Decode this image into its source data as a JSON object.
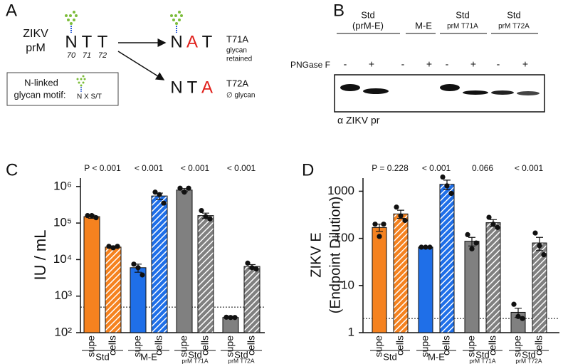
{
  "panel_a": {
    "letter": "A",
    "protein": [
      "ZIKV",
      "prM"
    ],
    "wild_type": {
      "residues": [
        "N",
        "T",
        "T"
      ],
      "positions": [
        "70",
        "71",
        "72"
      ]
    },
    "mutant_t71a": {
      "residues": [
        "N",
        "A",
        "T"
      ],
      "name": "T71A",
      "note": [
        "glycan",
        "retained"
      ]
    },
    "mutant_t72a": {
      "residues": [
        "N",
        "T",
        "A"
      ],
      "name": "T72A",
      "note": "∅ glycan"
    },
    "motif_box": {
      "title": [
        "N-linked",
        "glycan motif:"
      ],
      "motif": "N X S/T"
    }
  },
  "panel_b": {
    "letter": "B",
    "lanes": [
      {
        "name": [
          "Std",
          "(prM-E)"
        ]
      },
      {
        "name": [
          "M-E"
        ]
      },
      {
        "name": [
          "Std"
        ],
        "sub": "prM T71A"
      },
      {
        "name": [
          "Std"
        ],
        "sub": "prM T72A"
      }
    ],
    "treatment": "PNGase F",
    "signs": [
      "-",
      "+",
      "-",
      "+",
      "-",
      "+",
      "-",
      "+"
    ],
    "antibody": "α ZIKV pr"
  },
  "chart_data": [
    {
      "type": "bar",
      "letter": "C",
      "ylabel": "IU / mL",
      "log_scale": true,
      "ylim": [
        100,
        1700000
      ],
      "yticks": [
        {
          "value": 100,
          "label": "10²"
        },
        {
          "value": 1000,
          "label": "10³"
        },
        {
          "value": 10000,
          "label": "10⁴"
        },
        {
          "value": 100000,
          "label": "10⁵"
        },
        {
          "value": 1000000,
          "label": "10⁶"
        }
      ],
      "threshold": 500,
      "categories": [
        "supe",
        "cells",
        "supe",
        "cells",
        "supe",
        "cells",
        "supe",
        "cells"
      ],
      "groups": [
        {
          "name": "Std"
        },
        {
          "name": "M-E"
        },
        {
          "name": "Std",
          "sub": "prM T71A"
        },
        {
          "name": "Std",
          "sub": "prM T72A"
        }
      ],
      "pvalues": [
        "P < 0.001",
        "< 0.001",
        "< 0.001",
        "< 0.001"
      ],
      "values": [
        150000,
        22000,
        6000,
        550000,
        800000,
        160000,
        260,
        6500
      ],
      "errors": [
        15000,
        1500,
        1500,
        110000,
        80000,
        27000,
        3,
        800
      ],
      "points": [
        [
          160000,
          160000,
          140000
        ],
        [
          23000,
          21000,
          23000
        ],
        [
          7500,
          6000,
          3800
        ],
        [
          700000,
          600000,
          350000
        ],
        [
          900000,
          700000,
          900000
        ],
        [
          220000,
          150000,
          130000
        ],
        [
          265,
          260,
          260
        ],
        [
          8000,
          6000,
          5500
        ]
      ],
      "colors": [
        "#f5821f",
        "#f5821f",
        "#1f6fe8",
        "#1f6fe8",
        "#808080",
        "#808080",
        "#808080",
        "#808080"
      ],
      "hatched": [
        false,
        true,
        false,
        true,
        false,
        true,
        false,
        true
      ]
    },
    {
      "type": "bar",
      "letter": "D",
      "ylabel": [
        "ZIKV E",
        "(Endpoint Dilution)"
      ],
      "log_scale": true,
      "ylim": [
        1,
        1900
      ],
      "yticks": [
        1,
        10,
        100,
        1000
      ],
      "threshold": 2,
      "categories": [
        "supe",
        "cells",
        "supe",
        "cells",
        "supe",
        "cells",
        "supe",
        "cells"
      ],
      "groups": [
        {
          "name": "Std"
        },
        {
          "name": "M-E"
        },
        {
          "name": "Std",
          "sub": "prM T71A"
        },
        {
          "name": "Std",
          "sub": "prM T72A"
        }
      ],
      "pvalues": [
        "P = 0.228",
        "< 0.001",
        "0.066",
        "< 0.001"
      ],
      "values": [
        170,
        330,
        65,
        1400,
        87,
        215,
        2.7,
        80
      ],
      "errors": [
        30,
        65,
        0.5,
        320,
        18,
        35,
        0.6,
        25
      ],
      "points": [
        [
          200,
          110,
          200
        ],
        [
          460,
          300,
          240
        ],
        [
          65,
          65,
          65
        ],
        [
          2000,
          1300,
          900
        ],
        [
          120,
          60,
          80
        ],
        [
          280,
          200,
          170
        ],
        [
          4,
          2.2,
          2
        ],
        [
          130,
          70,
          45
        ]
      ],
      "colors": [
        "#f5821f",
        "#f5821f",
        "#1f6fe8",
        "#1f6fe8",
        "#808080",
        "#808080",
        "#808080",
        "#808080"
      ],
      "hatched": [
        false,
        true,
        false,
        true,
        false,
        true,
        false,
        true
      ]
    }
  ]
}
